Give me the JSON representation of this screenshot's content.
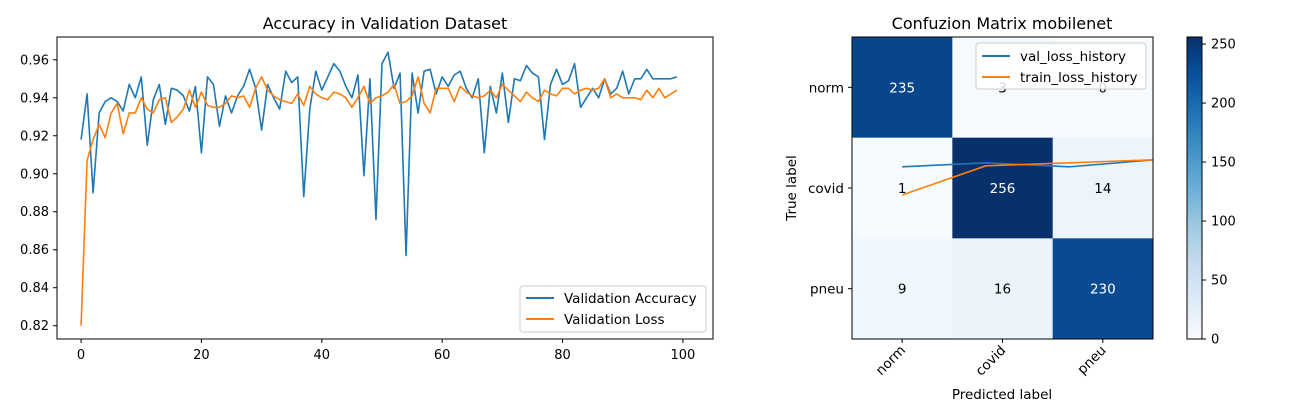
{
  "chart_data": [
    {
      "type": "line",
      "title": "Accuracy in Validation Dataset",
      "xlabel": "",
      "ylabel": "",
      "xlim": [
        -4,
        105
      ],
      "ylim": [
        0.813,
        0.972
      ],
      "x_ticks": [
        0,
        20,
        40,
        60,
        80,
        100
      ],
      "y_ticks": [
        0.82,
        0.84,
        0.86,
        0.88,
        0.9,
        0.92,
        0.94,
        0.96
      ],
      "y_tick_labels": [
        "0.82",
        "0.84",
        "0.86",
        "0.88",
        "0.90",
        "0.92",
        "0.94",
        "0.96"
      ],
      "grid": false,
      "legend_position": "bottom-right",
      "series": [
        {
          "name": "Validation Accuracy",
          "color": "#1f77b4",
          "values": [
            0.918,
            0.942,
            0.89,
            0.932,
            0.938,
            0.94,
            0.938,
            0.933,
            0.947,
            0.94,
            0.951,
            0.915,
            0.939,
            0.947,
            0.926,
            0.945,
            0.944,
            0.941,
            0.933,
            0.946,
            0.911,
            0.951,
            0.947,
            0.925,
            0.941,
            0.932,
            0.941,
            0.946,
            0.955,
            0.945,
            0.923,
            0.947,
            0.94,
            0.934,
            0.954,
            0.948,
            0.951,
            0.888,
            0.934,
            0.954,
            0.944,
            0.951,
            0.958,
            0.954,
            0.946,
            0.94,
            0.952,
            0.899,
            0.95,
            0.876,
            0.958,
            0.964,
            0.945,
            0.953,
            0.857,
            0.953,
            0.932,
            0.954,
            0.955,
            0.942,
            0.951,
            0.946,
            0.952,
            0.954,
            0.945,
            0.94,
            0.95,
            0.911,
            0.946,
            0.932,
            0.953,
            0.927,
            0.95,
            0.949,
            0.957,
            0.953,
            0.951,
            0.918,
            0.947,
            0.955,
            0.947,
            0.949,
            0.958,
            0.935,
            0.94,
            0.945,
            0.94,
            0.95,
            0.942,
            0.945,
            0.954,
            0.942,
            0.95,
            0.95,
            0.955,
            0.95,
            0.95,
            0.95,
            0.95,
            0.951
          ]
        },
        {
          "name": "Validation Loss",
          "color": "#ff7f0e",
          "values": [
            0.82,
            0.907,
            0.918,
            0.926,
            0.919,
            0.932,
            0.937,
            0.921,
            0.932,
            0.932,
            0.94,
            0.934,
            0.932,
            0.939,
            0.94,
            0.927,
            0.93,
            0.934,
            0.944,
            0.935,
            0.943,
            0.936,
            0.935,
            0.935,
            0.937,
            0.941,
            0.94,
            0.941,
            0.935,
            0.945,
            0.951,
            0.944,
            0.941,
            0.939,
            0.938,
            0.937,
            0.942,
            0.936,
            0.946,
            0.942,
            0.94,
            0.939,
            0.943,
            0.942,
            0.94,
            0.935,
            0.94,
            0.946,
            0.937,
            0.94,
            0.941,
            0.943,
            0.947,
            0.937,
            0.938,
            0.941,
            0.951,
            0.937,
            0.932,
            0.945,
            0.945,
            0.945,
            0.938,
            0.946,
            0.943,
            0.941,
            0.94,
            0.941,
            0.944,
            0.94,
            0.947,
            0.944,
            0.941,
            0.938,
            0.943,
            0.94,
            0.938,
            0.944,
            0.942,
            0.941,
            0.945,
            0.945,
            0.942,
            0.944,
            0.945,
            0.944,
            0.945,
            0.95,
            0.94,
            0.942,
            0.94,
            0.94,
            0.94,
            0.939,
            0.944,
            0.94,
            0.945,
            0.94,
            0.942,
            0.944
          ]
        }
      ]
    },
    {
      "type": "heatmap",
      "title": "Confuzion Matrix mobilenet",
      "xlabel": "Predicted label",
      "ylabel": "True label",
      "x_categories": [
        "norm",
        "covid",
        "pneu"
      ],
      "y_categories": [
        "norm",
        "covid",
        "pneu"
      ],
      "values": [
        [
          235,
          3,
          0
        ],
        [
          1,
          256,
          14
        ],
        [
          9,
          16,
          230
        ]
      ],
      "cell_labels": [
        [
          "235",
          "3",
          "0"
        ],
        [
          "1",
          "256",
          "14"
        ],
        [
          "9",
          "16",
          "230"
        ]
      ],
      "colormap": "Blues",
      "vmin": 0,
      "vmax": 256,
      "colorbar_ticks": [
        0,
        50,
        100,
        150,
        200,
        250
      ],
      "legend_position": "top-right",
      "overlay_series": [
        {
          "name": "val_loss_history",
          "color": "#1f77b4",
          "y_values": [
            0.79,
            0.75,
            0.79,
            0.72
          ]
        },
        {
          "name": "train_loss_history",
          "color": "#ff7f0e",
          "y_values": [
            1.07,
            0.78,
            0.75,
            0.72
          ]
        }
      ]
    }
  ]
}
